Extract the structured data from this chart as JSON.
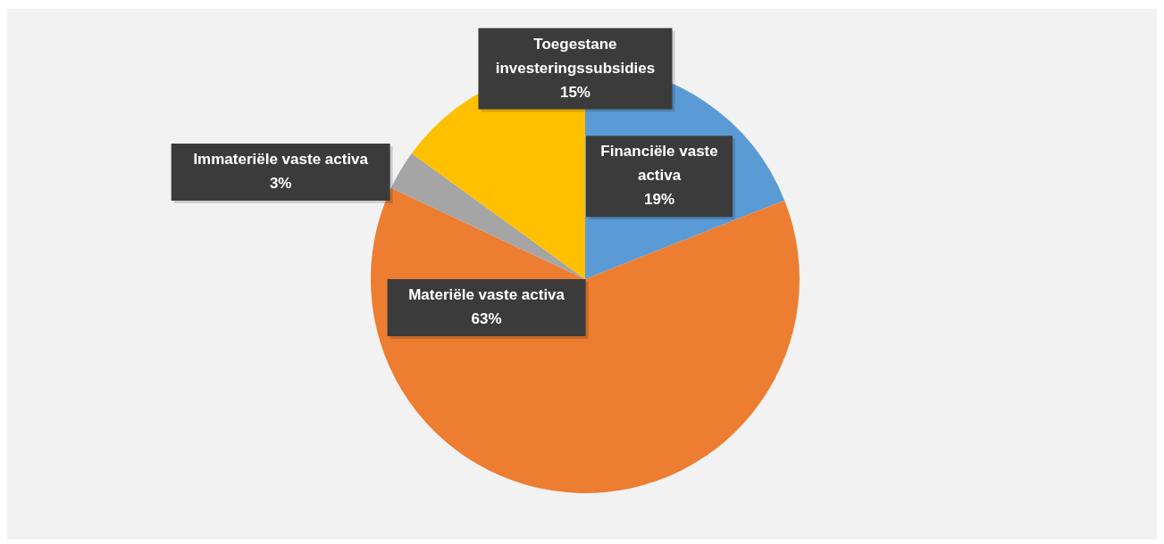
{
  "chart_data": {
    "type": "pie",
    "categories": [
      "Financiële vaste activa",
      "Materiële vaste activa",
      "Immateriële vaste activa",
      "Toegestane investeringssubsidies"
    ],
    "values": [
      19,
      63,
      3,
      15
    ],
    "value_labels": [
      "19%",
      "63%",
      "3%",
      "15%"
    ],
    "colors": [
      "#5b9bd5",
      "#ed7d31",
      "#a5a5a5",
      "#ffc000"
    ],
    "legend": false
  }
}
